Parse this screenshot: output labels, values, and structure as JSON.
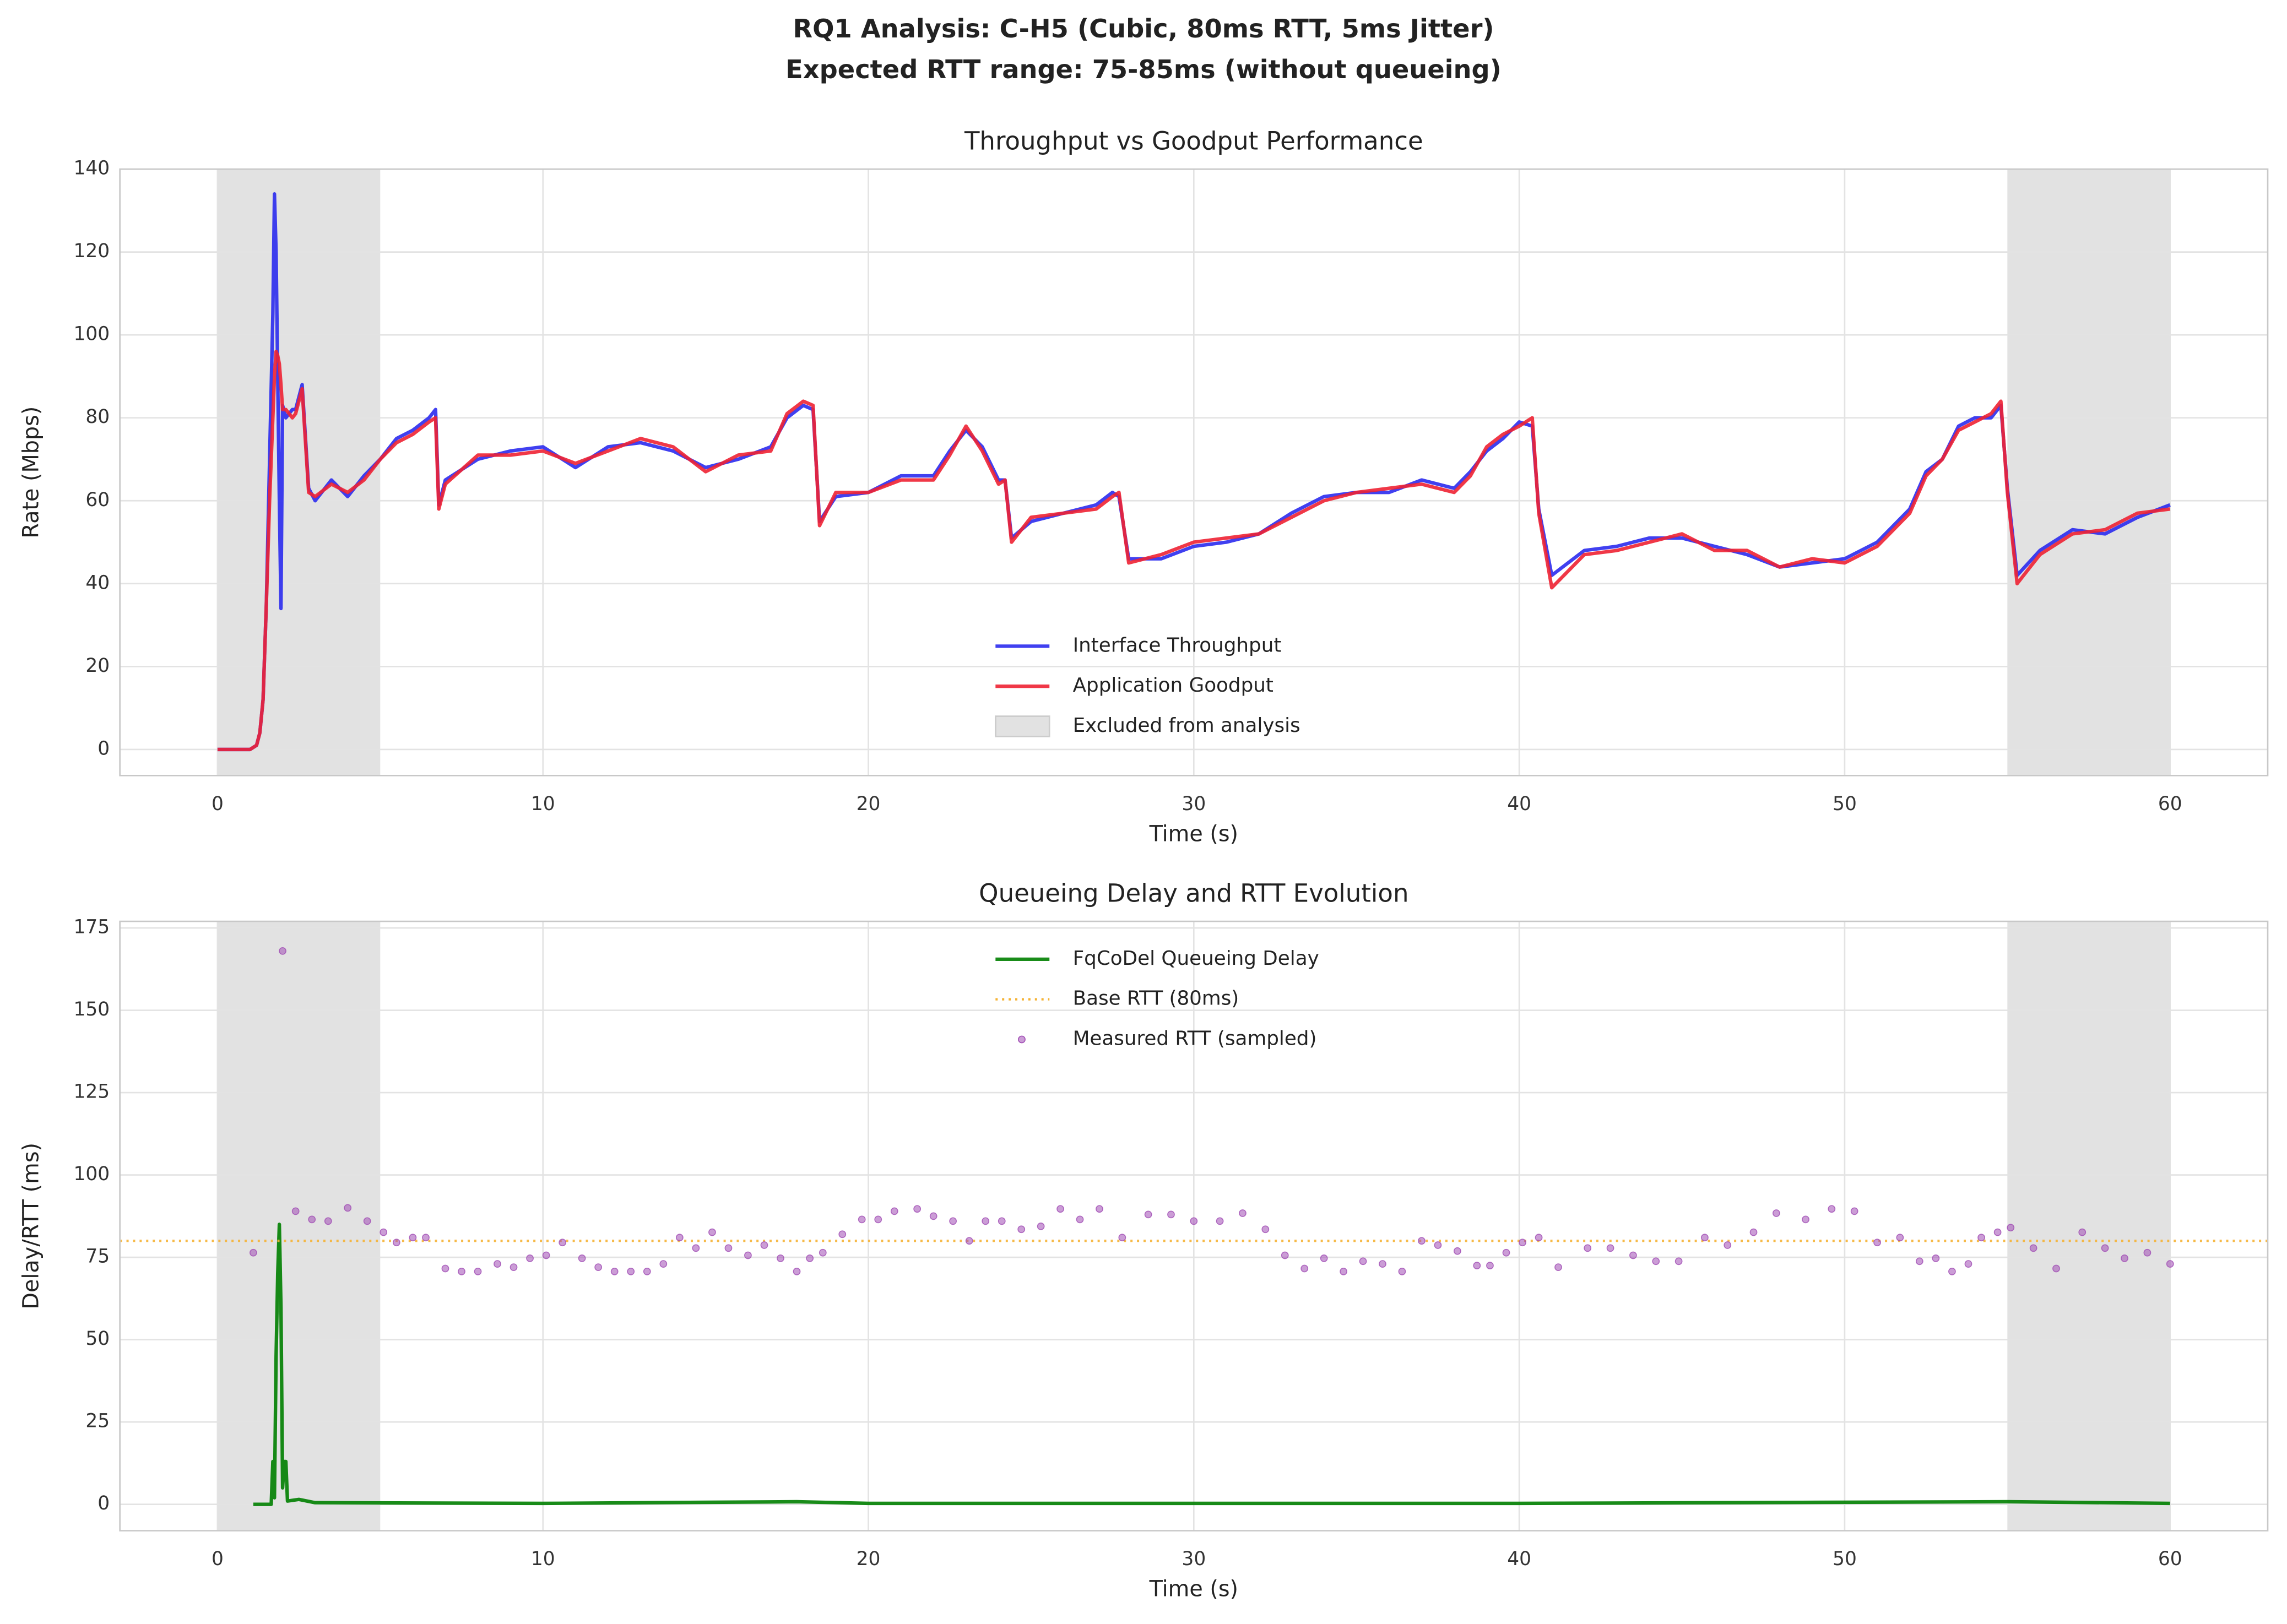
{
  "figure_title": [
    "RQ1 Analysis: C-H5 (Cubic, 80ms RTT, 5ms Jitter)",
    "Expected RTT range: 75-85ms (without queueing)"
  ],
  "chart_data": [
    {
      "type": "line",
      "title": "Throughput vs Goodput Performance",
      "xlabel": "Time (s)",
      "ylabel": "Rate (Mbps)",
      "x": [
        0,
        1,
        1.2,
        1.3,
        1.4,
        1.5,
        1.6,
        1.7,
        1.75,
        1.8,
        1.85,
        1.9,
        1.95,
        2.0,
        2.1,
        2.3,
        2.4,
        2.6,
        2.8,
        3,
        3.5,
        4,
        4.5,
        5,
        5.5,
        6,
        6.5,
        6.7,
        6.8,
        7,
        8,
        9,
        10,
        11,
        12,
        13,
        14,
        15,
        16,
        17,
        17.5,
        18,
        18.3,
        18.5,
        19,
        20,
        21,
        22,
        22.5,
        23,
        23.5,
        24,
        24.2,
        24.4,
        25,
        26,
        27,
        27.5,
        27.7,
        28,
        29,
        30,
        31,
        32,
        33,
        34,
        35,
        36,
        37,
        38,
        38.5,
        39,
        39.5,
        40,
        40.4,
        40.6,
        41,
        42,
        43,
        44,
        45,
        46,
        47,
        48,
        49,
        50,
        51,
        52,
        52.5,
        53,
        53.5,
        54,
        54.5,
        54.8,
        55,
        55.3,
        56,
        57,
        58,
        59,
        60
      ],
      "series": [
        {
          "name": "Interface Throughput",
          "color": "#2b2bee",
          "values": [
            0,
            0,
            1,
            4,
            12,
            35,
            70,
            105,
            134,
            120,
            90,
            60,
            34,
            83,
            80,
            82,
            82,
            88,
            63,
            60,
            65,
            61,
            66,
            70,
            75,
            77,
            80,
            82,
            59,
            65,
            70,
            72,
            73,
            68,
            73,
            74,
            72,
            68,
            70,
            73,
            80,
            83,
            82,
            55,
            61,
            62,
            66,
            66,
            72,
            77,
            73,
            65,
            65,
            51,
            55,
            57,
            59,
            62,
            61,
            46,
            46,
            49,
            50,
            52,
            57,
            61,
            62,
            62,
            65,
            63,
            67,
            72,
            75,
            79,
            78,
            58,
            42,
            48,
            49,
            51,
            51,
            49,
            47,
            44,
            45,
            46,
            50,
            58,
            67,
            70,
            78,
            80,
            80,
            83,
            63,
            42,
            48,
            53,
            52,
            56,
            59
          ]
        },
        {
          "name": "Application Goodput",
          "color": "#ee2233",
          "values": [
            0,
            0,
            1,
            4,
            12,
            35,
            60,
            80,
            90,
            96,
            95,
            93,
            88,
            82,
            82,
            80,
            81,
            87,
            62,
            61,
            64,
            62,
            65,
            70,
            74,
            76,
            79,
            80,
            58,
            64,
            71,
            71,
            72,
            69,
            72,
            75,
            73,
            67,
            71,
            72,
            81,
            84,
            83,
            54,
            62,
            62,
            65,
            65,
            71,
            78,
            72,
            64,
            65,
            50,
            56,
            57,
            58,
            61,
            62,
            45,
            47,
            50,
            51,
            52,
            56,
            60,
            62,
            63,
            64,
            62,
            66,
            73,
            76,
            78,
            80,
            57,
            39,
            47,
            48,
            50,
            52,
            48,
            48,
            44,
            46,
            45,
            49,
            57,
            66,
            70,
            77,
            79,
            81,
            84,
            62,
            40,
            47,
            52,
            53,
            57,
            58
          ]
        }
      ],
      "shaded": {
        "name": "Excluded from analysis",
        "color": "#b4b4b4",
        "ranges": [
          [
            0,
            5
          ],
          [
            55,
            60
          ]
        ]
      },
      "xlim": [
        -3,
        63
      ],
      "ylim": [
        -6.3,
        140
      ],
      "xticks": [
        0,
        10,
        20,
        30,
        40,
        50,
        60
      ],
      "yticks": [
        0,
        20,
        40,
        60,
        80,
        100,
        120,
        140
      ],
      "grid": true,
      "legend": "lower center"
    },
    {
      "type": "line",
      "title": "Queueing Delay and RTT Evolution",
      "xlabel": "Time (s)",
      "ylabel": "Delay/RTT (ms)",
      "series": [
        {
          "name": "FqCoDel Queueing Delay",
          "type": "line",
          "color": "#008000",
          "x": [
            1.1,
            1.65,
            1.7,
            1.75,
            1.8,
            1.85,
            1.9,
            1.95,
            2.0,
            2.05,
            2.1,
            2.15,
            2.5,
            3,
            10,
            17.8,
            20,
            40,
            55,
            60
          ],
          "values": [
            0,
            0,
            13,
            2,
            45,
            70,
            85,
            60,
            5,
            13,
            13,
            1,
            1.5,
            0.5,
            0.3,
            0.8,
            0.3,
            0.3,
            0.8,
            0.3
          ]
        },
        {
          "name": "Base RTT (80ms)",
          "type": "hline",
          "color": "#f5b335",
          "y": 80
        },
        {
          "name": "Measured RTT (sampled)",
          "type": "scatter",
          "color": "#a04cb4",
          "x": [
            1.1,
            2.0,
            2.4,
            2.9,
            3.4,
            4.0,
            4.6,
            5.1,
            5.5,
            6.0,
            6.4,
            7.0,
            7.5,
            8.0,
            8.6,
            9.1,
            9.6,
            10.1,
            10.6,
            11.2,
            11.7,
            12.2,
            12.7,
            13.2,
            13.7,
            14.2,
            14.7,
            15.2,
            15.7,
            16.3,
            16.8,
            17.3,
            17.8,
            18.2,
            18.6,
            19.2,
            19.8,
            20.3,
            20.8,
            21.5,
            22.0,
            22.6,
            23.1,
            23.6,
            24.1,
            24.7,
            25.3,
            25.9,
            26.5,
            27.1,
            27.8,
            28.6,
            29.3,
            30.0,
            30.8,
            31.5,
            32.2,
            32.8,
            33.4,
            34.0,
            34.6,
            35.2,
            35.8,
            36.4,
            37.0,
            37.5,
            38.1,
            38.7,
            39.1,
            39.6,
            40.1,
            40.6,
            41.2,
            42.1,
            42.8,
            43.5,
            44.2,
            44.9,
            45.7,
            46.4,
            47.2,
            47.9,
            48.8,
            49.6,
            50.3,
            51.0,
            51.7,
            52.3,
            52.8,
            53.3,
            53.8,
            54.2,
            54.7,
            55.1,
            55.8,
            56.5,
            57.3,
            58.0,
            58.6,
            59.3,
            60.0
          ],
          "values": [
            76.4,
            168,
            89,
            86.5,
            86,
            90,
            86,
            82.6,
            79.5,
            81,
            81,
            71.6,
            70.7,
            70.7,
            73,
            72,
            74.7,
            75.6,
            79.5,
            74.7,
            72,
            70.7,
            70.7,
            70.7,
            73,
            81,
            77.8,
            82.6,
            77.8,
            75.6,
            78.7,
            74.7,
            70.7,
            74.7,
            76.4,
            82,
            86.5,
            86.5,
            89,
            89.7,
            87.5,
            86,
            80,
            86,
            86,
            83.5,
            84.4,
            89.7,
            86.5,
            89.7,
            81,
            88,
            88,
            86,
            86,
            88.4,
            83.5,
            75.6,
            71.6,
            74.7,
            70.7,
            73.8,
            73,
            70.7,
            80,
            78.7,
            76.9,
            72.5,
            72.5,
            76.4,
            79.5,
            81,
            72,
            77.8,
            77.8,
            75.6,
            73.8,
            73.8,
            81,
            78.7,
            82.6,
            88.4,
            86.5,
            89.7,
            89,
            79.5,
            81,
            73.8,
            74.7,
            70.7,
            73,
            81,
            82.6,
            84,
            77.8,
            71.6,
            82.6,
            77.8,
            74.7,
            76.4,
            73
          ]
        }
      ],
      "shaded": {
        "color": "#b4b4b4",
        "ranges": [
          [
            0,
            5
          ],
          [
            55,
            60
          ]
        ]
      },
      "xlim": [
        -3,
        63
      ],
      "ylim": [
        -8,
        177
      ],
      "xticks": [
        0,
        10,
        20,
        30,
        40,
        50,
        60
      ],
      "yticks": [
        0,
        25,
        50,
        75,
        100,
        125,
        150,
        175
      ],
      "grid": true,
      "legend": "upper center"
    }
  ]
}
